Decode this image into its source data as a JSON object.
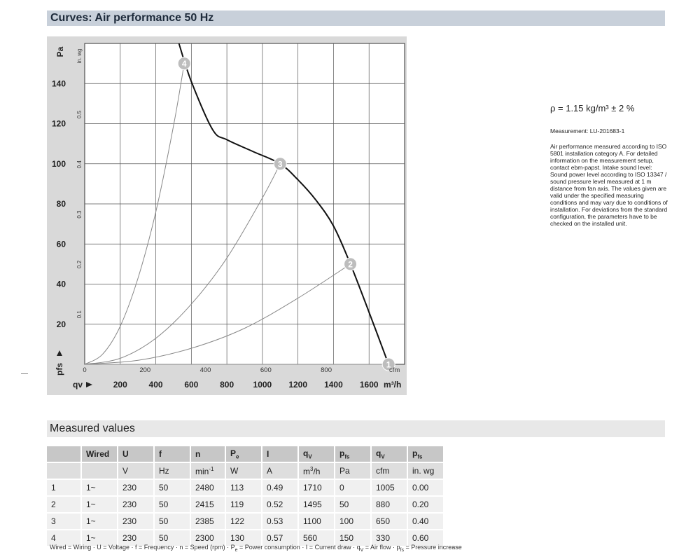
{
  "headers": {
    "curves": "Curves: Air performance 50 Hz",
    "measured": "Measured values"
  },
  "chart_data": {
    "type": "line",
    "y_pa_ticks": [
      "20",
      "40",
      "60",
      "80",
      "100",
      "120",
      "140"
    ],
    "y_pa_unit": "Pa",
    "y_inwg_ticks": [
      "0.1",
      "0.2",
      "0.3",
      "0.4",
      "0.5"
    ],
    "y_inwg_unit": "in. wg",
    "y_label": "pfs",
    "x_cfm_ticks": [
      "0",
      "200",
      "400",
      "600",
      "800"
    ],
    "x_cfm_unit": "cfm",
    "x_m3h_ticks": [
      "200",
      "400",
      "600",
      "800",
      "1000",
      "1200",
      "1400",
      "1600"
    ],
    "x_m3h_unit": "m³/h",
    "x_label": "qv",
    "xlim_m3h": [
      0,
      1800
    ],
    "ylim_pa": [
      0,
      160
    ],
    "grid": true,
    "series": [
      {
        "id": "fan-curve",
        "x": [
          530,
          600,
          720,
          800,
          950,
          1100,
          1200,
          1300,
          1400,
          1495,
          1600,
          1710
        ],
        "y": [
          160,
          141,
          117,
          112,
          106,
          100,
          92,
          82,
          69,
          50,
          26,
          0
        ]
      },
      {
        "id": "system-1",
        "x": [
          0,
          1710
        ],
        "y": [
          0,
          0
        ]
      },
      {
        "id": "system-2",
        "x": [
          0,
          300,
          600,
          900,
          1200,
          1495
        ],
        "y": [
          0,
          2,
          8,
          18,
          33,
          50
        ]
      },
      {
        "id": "system-3",
        "x": [
          0,
          200,
          400,
          600,
          800,
          1000,
          1100
        ],
        "y": [
          0,
          3,
          13,
          30,
          53,
          83,
          100
        ]
      },
      {
        "id": "system-4",
        "x": [
          0,
          100,
          200,
          300,
          400,
          500,
          560
        ],
        "y": [
          0,
          5,
          19,
          43,
          76,
          119,
          150
        ]
      }
    ],
    "points": [
      {
        "label": "1",
        "x": 1710,
        "y": 0
      },
      {
        "label": "2",
        "x": 1495,
        "y": 50
      },
      {
        "label": "3",
        "x": 1100,
        "y": 100
      },
      {
        "label": "4",
        "x": 560,
        "y": 150
      }
    ]
  },
  "notes": {
    "density": "ρ = 1.15 kg/m³ ± 2 %",
    "measurement": "Measurement: LU-201683-1",
    "description": "Air performance measured according to ISO 5801 installation category A. For detailed information on the measurement setup, contact ebm-papst. Intake sound level: Sound power level according to ISO 13347 / sound pressure level measured at 1 m distance from fan axis. The values given are valid under the specified measuring conditions and may vary due to conditions of installation. For deviations from the standard configuration, the parameters have to be checked on the installed unit."
  },
  "table": {
    "head1": [
      "",
      "Wired",
      "U",
      "f",
      "n",
      "P",
      "I",
      "q",
      "p",
      "q",
      "p"
    ],
    "head1_sub": [
      "",
      "",
      "",
      "",
      "",
      "e",
      "",
      "V",
      "fs",
      "V",
      "fs"
    ],
    "head2": [
      "",
      "",
      "V",
      "Hz",
      "min",
      "W",
      "A",
      "m",
      "Pa",
      "cfm",
      "in. wg"
    ],
    "head2_sup": [
      "",
      "",
      "",
      "",
      "-1",
      "",
      "",
      "3",
      "",
      "",
      ""
    ],
    "head2_tail": [
      "",
      "",
      "",
      "",
      "",
      "",
      "",
      "/h",
      "",
      "",
      ""
    ],
    "rows": [
      [
        "1",
        "1~",
        "230",
        "50",
        "2480",
        "113",
        "0.49",
        "1710",
        "0",
        "1005",
        "0.00"
      ],
      [
        "2",
        "1~",
        "230",
        "50",
        "2415",
        "119",
        "0.52",
        "1495",
        "50",
        "880",
        "0.20"
      ],
      [
        "3",
        "1~",
        "230",
        "50",
        "2385",
        "122",
        "0.53",
        "1100",
        "100",
        "650",
        "0.40"
      ],
      [
        "4",
        "1~",
        "230",
        "50",
        "2300",
        "130",
        "0.57",
        "560",
        "150",
        "330",
        "0.60"
      ]
    ]
  },
  "footnote": {
    "a": "Wired = Wiring · U = Voltage · f = Frequency · n = Speed (rpm) · P",
    "a_sub": "e",
    "b": " = Power consumption · I = Current draw · q",
    "b_sub": "V",
    "c": " = Air flow · p",
    "c_sub": "fs",
    "d": " = Pressure increase"
  }
}
